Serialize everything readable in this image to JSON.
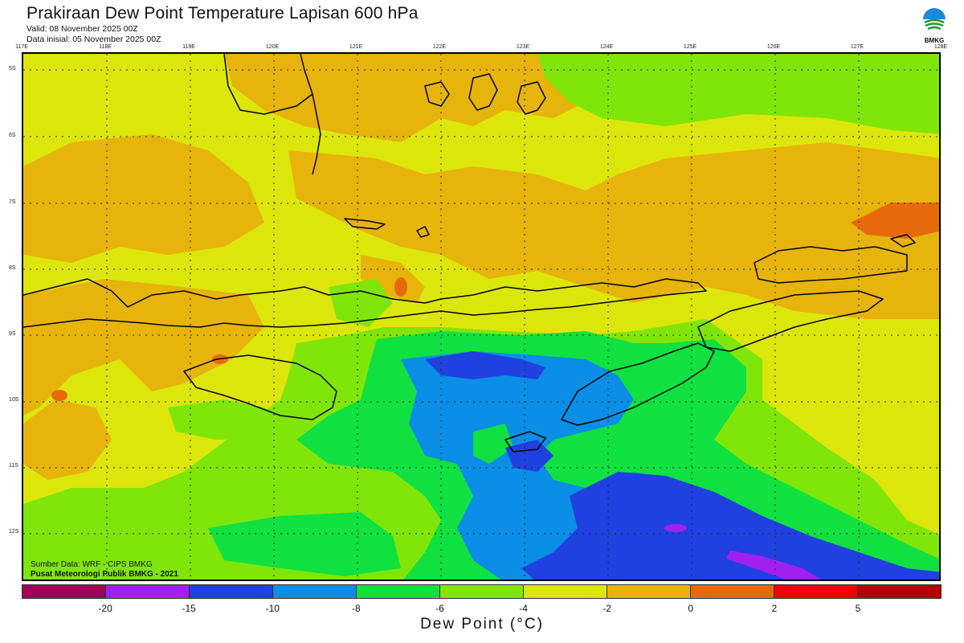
{
  "title": "Prakiraan Dew Point Temperature Lapisan 600 hPa",
  "valid": "Valid: 08 November 2025 00Z",
  "init": "Data inisial: 05 November 2025 00Z",
  "logo_text": "BMKG",
  "lon_labels": [
    "117E",
    "118E",
    "119E",
    "120E",
    "121E",
    "122E",
    "123E",
    "124E",
    "125E",
    "126E",
    "127E",
    "128E"
  ],
  "lat_labels": [
    "5S",
    "6S",
    "7S",
    "8S",
    "9S",
    "10S",
    "11S",
    "12S"
  ],
  "credits": {
    "source": "Sumber Data: WRF - CIPS BMKG",
    "org": "Pusat Meteorologi Publik BMKG - 2021"
  },
  "colorbar": {
    "colors": [
      "#a0005a",
      "#a020f0",
      "#2040e0",
      "#0a8ee6",
      "#10e040",
      "#80e60a",
      "#dde60a",
      "#e6b40a",
      "#e66a0a",
      "#f00000",
      "#b40000"
    ],
    "ticks": [
      "-20",
      "-15",
      "-10",
      "-8",
      "-6",
      "-4",
      "-2",
      "0",
      "2",
      "5"
    ],
    "label": "Dew Point (°C)"
  }
}
